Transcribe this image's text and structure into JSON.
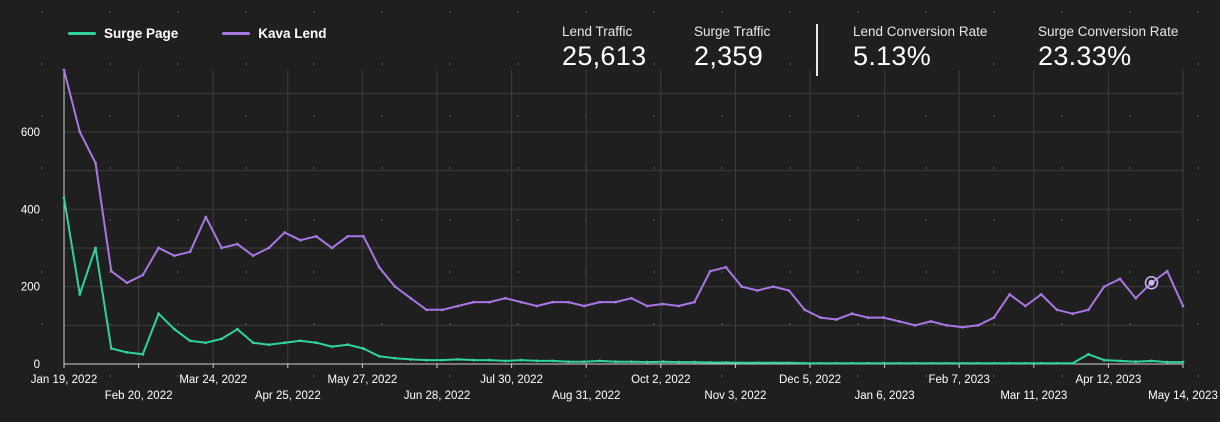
{
  "colors": {
    "background": "#1f1f1f",
    "grid": "#3c3c3c",
    "surge": "#2fd39b",
    "lend": "#a777e3",
    "text": "#ffffff"
  },
  "stats": {
    "lend_traffic": {
      "label": "Lend Traffic",
      "value": "25,613"
    },
    "surge_traffic": {
      "label": "Surge Traffic",
      "value": "2,359"
    },
    "lend_conversion": {
      "label": "Lend Conversion Rate",
      "value": "5.13%"
    },
    "surge_conversion": {
      "label": "Surge Conversion Rate",
      "value": "23.33%"
    }
  },
  "chart_data": {
    "type": "line",
    "title": "",
    "xlabel": "",
    "ylabel": "",
    "ylim": [
      0,
      760
    ],
    "grid": true,
    "legend_position": "top-left",
    "y_ticks": [
      0,
      200,
      400,
      600
    ],
    "x_tick_labels": [
      "Jan 19, 2022",
      "Feb 20, 2022",
      "Mar 24, 2022",
      "Apr 25, 2022",
      "May 27, 2022",
      "Jun 28, 2022",
      "Jul 30, 2022",
      "Aug 31, 2022",
      "Oct 2, 2022",
      "Nov 3, 2022",
      "Dec 5, 2022",
      "Jan 6, 2023",
      "Feb 7, 2023",
      "Mar 11, 2023",
      "Apr 12, 2023",
      "May 14, 2023"
    ],
    "x": [
      "Jan 19, 2022",
      "Jan 26, 2022",
      "Feb 2, 2022",
      "Feb 9, 2022",
      "Feb 16, 2022",
      "Feb 23, 2022",
      "Mar 2, 2022",
      "Mar 9, 2022",
      "Mar 16, 2022",
      "Mar 23, 2022",
      "Mar 30, 2022",
      "Apr 6, 2022",
      "Apr 13, 2022",
      "Apr 20, 2022",
      "Apr 27, 2022",
      "May 4, 2022",
      "May 11, 2022",
      "May 18, 2022",
      "May 25, 2022",
      "Jun 1, 2022",
      "Jun 8, 2022",
      "Jun 15, 2022",
      "Jun 22, 2022",
      "Jun 29, 2022",
      "Jul 6, 2022",
      "Jul 13, 2022",
      "Jul 20, 2022",
      "Jul 27, 2022",
      "Aug 3, 2022",
      "Aug 10, 2022",
      "Aug 17, 2022",
      "Aug 24, 2022",
      "Aug 31, 2022",
      "Sep 7, 2022",
      "Sep 14, 2022",
      "Sep 21, 2022",
      "Sep 28, 2022",
      "Oct 5, 2022",
      "Oct 12, 2022",
      "Oct 19, 2022",
      "Oct 26, 2022",
      "Nov 2, 2022",
      "Nov 9, 2022",
      "Nov 16, 2022",
      "Nov 23, 2022",
      "Nov 30, 2022",
      "Dec 7, 2022",
      "Dec 14, 2022",
      "Dec 21, 2022",
      "Dec 28, 2022",
      "Jan 4, 2023",
      "Jan 11, 2023",
      "Jan 18, 2023",
      "Jan 25, 2023",
      "Feb 1, 2023",
      "Feb 8, 2023",
      "Feb 15, 2023",
      "Feb 22, 2023",
      "Mar 1, 2023",
      "Mar 8, 2023",
      "Mar 15, 2023",
      "Mar 22, 2023",
      "Mar 29, 2023",
      "Apr 5, 2023",
      "Apr 12, 2023",
      "Apr 19, 2023",
      "Apr 26, 2023",
      "May 3, 2023",
      "May 10, 2023",
      "May 17, 2023",
      "May 24, 2023",
      "May 31, 2023"
    ],
    "series": [
      {
        "name": "Surge Page",
        "color": "#2fd39b",
        "values": [
          430,
          180,
          300,
          40,
          30,
          25,
          130,
          90,
          60,
          55,
          65,
          90,
          55,
          50,
          55,
          60,
          55,
          45,
          50,
          40,
          20,
          15,
          12,
          10,
          10,
          12,
          10,
          10,
          8,
          10,
          8,
          8,
          6,
          6,
          8,
          6,
          6,
          5,
          6,
          5,
          5,
          4,
          4,
          3,
          3,
          3,
          3,
          2,
          2,
          2,
          2,
          2,
          2,
          2,
          2,
          2,
          2,
          2,
          2,
          2,
          2,
          2,
          2,
          2,
          2,
          25,
          10,
          8,
          6,
          8,
          5,
          5
        ]
      },
      {
        "name": "Kava Lend",
        "color": "#a777e3",
        "values": [
          760,
          600,
          520,
          240,
          210,
          230,
          300,
          280,
          290,
          380,
          300,
          310,
          280,
          300,
          340,
          320,
          330,
          300,
          330,
          330,
          250,
          200,
          170,
          140,
          140,
          150,
          160,
          160,
          170,
          160,
          150,
          160,
          160,
          150,
          160,
          160,
          170,
          150,
          155,
          150,
          160,
          240,
          250,
          200,
          190,
          200,
          190,
          140,
          120,
          115,
          130,
          120,
          120,
          110,
          100,
          110,
          100,
          95,
          100,
          120,
          180,
          150,
          180,
          140,
          130,
          140,
          200,
          220,
          170,
          210,
          240,
          150
        ]
      }
    ]
  }
}
